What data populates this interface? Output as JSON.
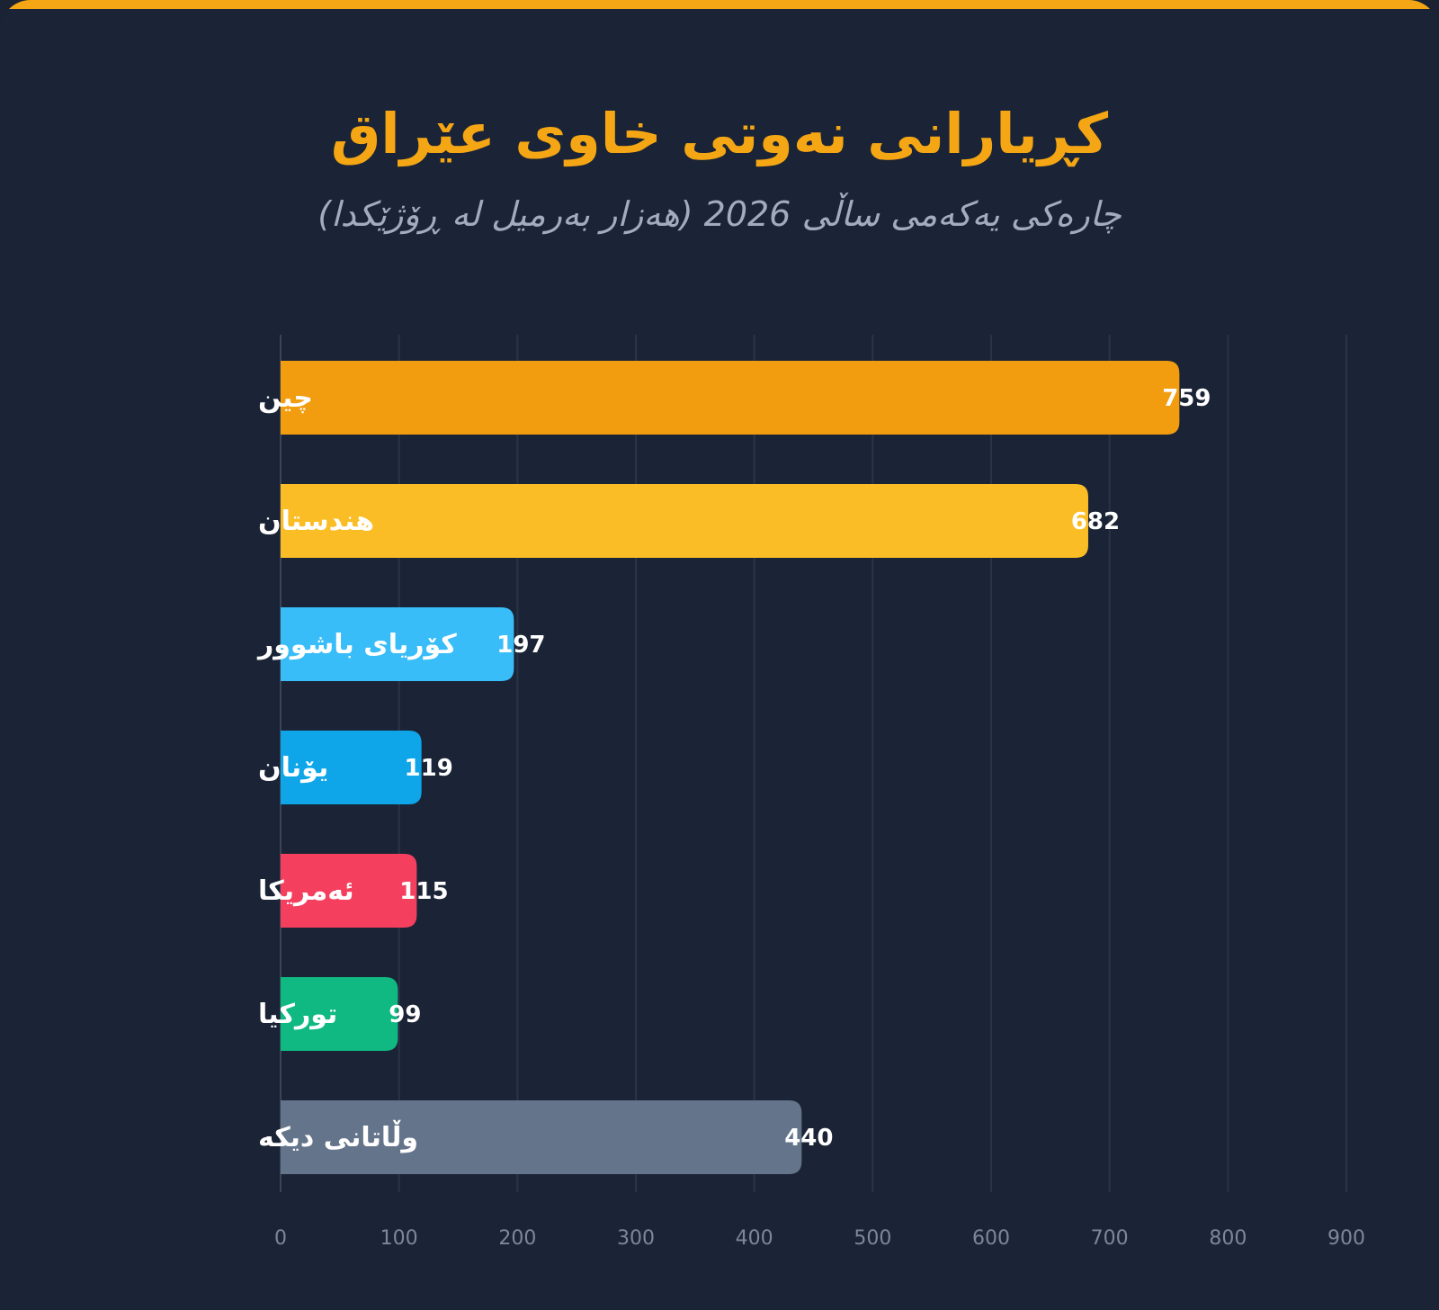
{
  "header": {
    "title": "کڕیارانی نەوتی خاوی عێراق",
    "subtitle": "چارەکی یەکەمی ساڵی 2026 (هەزار بەرمیل لە ڕۆژێکدا)"
  },
  "colors": {
    "accent": "#f5a614",
    "background": "#1b2436",
    "grid": "#2a3447"
  },
  "chart_data": {
    "type": "bar",
    "orientation": "horizontal",
    "title": "کڕیارانی نەوتی خاوی عێراق",
    "subtitle": "چارەکی یەکەمی ساڵی 2026 (هەزار بەرمیل لە ڕۆژێکدا)",
    "xlabel": "",
    "ylabel": "",
    "xlim": [
      0,
      900
    ],
    "xticks": [
      0,
      100,
      200,
      300,
      400,
      500,
      600,
      700,
      800,
      900
    ],
    "grid": true,
    "categories": [
      "چین",
      "هندستان",
      "کۆریای باشوور",
      "یۆنان",
      "ئەمریکا",
      "تورکیا",
      "وڵاتانی دیکە"
    ],
    "values": [
      759,
      682,
      197,
      119,
      115,
      99,
      440
    ],
    "colors": [
      "#f29d0f",
      "#fbbd26",
      "#38bdf8",
      "#0ea5e9",
      "#f43f5e",
      "#10b981",
      "#64748b"
    ]
  }
}
